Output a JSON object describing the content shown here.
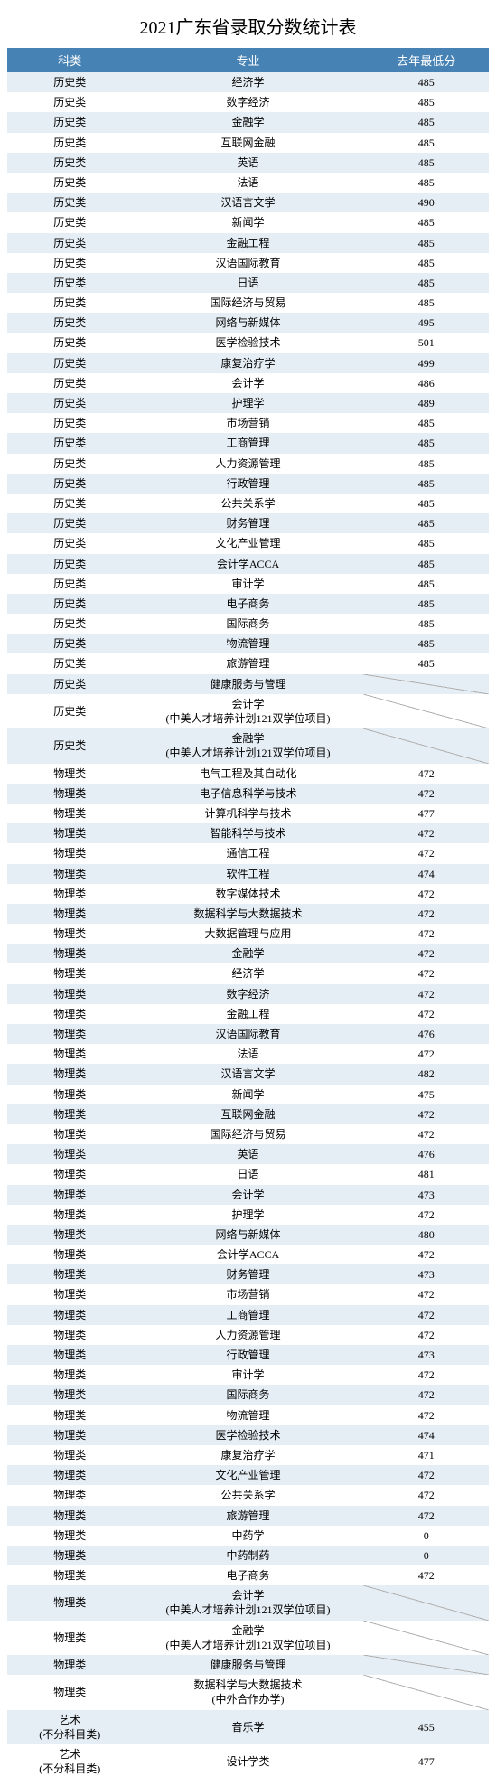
{
  "title": "2021广东省录取分数统计表",
  "columns": [
    "科类",
    "专业",
    "去年最低分"
  ],
  "header_bg": "#4682b4",
  "header_fg": "#ffffff",
  "row_bg_odd": "#e6eef5",
  "row_bg_even": "#ffffff",
  "title_fontsize": 20,
  "header_fontsize": 13,
  "cell_fontsize": 12,
  "rows": [
    {
      "cat": "历史类",
      "major": "经济学",
      "score": "485"
    },
    {
      "cat": "历史类",
      "major": "数字经济",
      "score": "485"
    },
    {
      "cat": "历史类",
      "major": "金融学",
      "score": "485"
    },
    {
      "cat": "历史类",
      "major": "互联网金融",
      "score": "485"
    },
    {
      "cat": "历史类",
      "major": "英语",
      "score": "485"
    },
    {
      "cat": "历史类",
      "major": "法语",
      "score": "485"
    },
    {
      "cat": "历史类",
      "major": "汉语言文学",
      "score": "490"
    },
    {
      "cat": "历史类",
      "major": "新闻学",
      "score": "485"
    },
    {
      "cat": "历史类",
      "major": "金融工程",
      "score": "485"
    },
    {
      "cat": "历史类",
      "major": "汉语国际教育",
      "score": "485"
    },
    {
      "cat": "历史类",
      "major": "日语",
      "score": "485"
    },
    {
      "cat": "历史类",
      "major": "国际经济与贸易",
      "score": "485"
    },
    {
      "cat": "历史类",
      "major": "网络与新媒体",
      "score": "495"
    },
    {
      "cat": "历史类",
      "major": "医学检验技术",
      "score": "501"
    },
    {
      "cat": "历史类",
      "major": "康复治疗学",
      "score": "499"
    },
    {
      "cat": "历史类",
      "major": "会计学",
      "score": "486"
    },
    {
      "cat": "历史类",
      "major": "护理学",
      "score": "489"
    },
    {
      "cat": "历史类",
      "major": "市场营销",
      "score": "485"
    },
    {
      "cat": "历史类",
      "major": "工商管理",
      "score": "485"
    },
    {
      "cat": "历史类",
      "major": "人力资源管理",
      "score": "485"
    },
    {
      "cat": "历史类",
      "major": "行政管理",
      "score": "485"
    },
    {
      "cat": "历史类",
      "major": "公共关系学",
      "score": "485"
    },
    {
      "cat": "历史类",
      "major": "财务管理",
      "score": "485"
    },
    {
      "cat": "历史类",
      "major": "文化产业管理",
      "score": "485"
    },
    {
      "cat": "历史类",
      "major": "会计学ACCA",
      "score": "485"
    },
    {
      "cat": "历史类",
      "major": "审计学",
      "score": "485"
    },
    {
      "cat": "历史类",
      "major": "电子商务",
      "score": "485"
    },
    {
      "cat": "历史类",
      "major": "国际商务",
      "score": "485"
    },
    {
      "cat": "历史类",
      "major": "物流管理",
      "score": "485"
    },
    {
      "cat": "历史类",
      "major": "旅游管理",
      "score": "485"
    },
    {
      "cat": "历史类",
      "major": "健康服务与管理",
      "score": null
    },
    {
      "cat": "历史类",
      "major": "会计学\n(中美人才培养计划121双学位项目)",
      "score": null
    },
    {
      "cat": "历史类",
      "major": "金融学\n(中美人才培养计划121双学位项目)",
      "score": null
    },
    {
      "cat": "物理类",
      "major": "电气工程及其自动化",
      "score": "472"
    },
    {
      "cat": "物理类",
      "major": "电子信息科学与技术",
      "score": "472"
    },
    {
      "cat": "物理类",
      "major": "计算机科学与技术",
      "score": "477"
    },
    {
      "cat": "物理类",
      "major": "智能科学与技术",
      "score": "472"
    },
    {
      "cat": "物理类",
      "major": "通信工程",
      "score": "472"
    },
    {
      "cat": "物理类",
      "major": "软件工程",
      "score": "474"
    },
    {
      "cat": "物理类",
      "major": "数字媒体技术",
      "score": "472"
    },
    {
      "cat": "物理类",
      "major": "数据科学与大数据技术",
      "score": "472"
    },
    {
      "cat": "物理类",
      "major": "大数据管理与应用",
      "score": "472"
    },
    {
      "cat": "物理类",
      "major": "金融学",
      "score": "472"
    },
    {
      "cat": "物理类",
      "major": "经济学",
      "score": "472"
    },
    {
      "cat": "物理类",
      "major": "数字经济",
      "score": "472"
    },
    {
      "cat": "物理类",
      "major": "金融工程",
      "score": "472"
    },
    {
      "cat": "物理类",
      "major": "汉语国际教育",
      "score": "476"
    },
    {
      "cat": "物理类",
      "major": "法语",
      "score": "472"
    },
    {
      "cat": "物理类",
      "major": "汉语言文学",
      "score": "482"
    },
    {
      "cat": "物理类",
      "major": "新闻学",
      "score": "475"
    },
    {
      "cat": "物理类",
      "major": "互联网金融",
      "score": "472"
    },
    {
      "cat": "物理类",
      "major": "国际经济与贸易",
      "score": "472"
    },
    {
      "cat": "物理类",
      "major": "英语",
      "score": "476"
    },
    {
      "cat": "物理类",
      "major": "日语",
      "score": "481"
    },
    {
      "cat": "物理类",
      "major": "会计学",
      "score": "473"
    },
    {
      "cat": "物理类",
      "major": "护理学",
      "score": "472"
    },
    {
      "cat": "物理类",
      "major": "网络与新媒体",
      "score": "480"
    },
    {
      "cat": "物理类",
      "major": "会计学ACCA",
      "score": "472"
    },
    {
      "cat": "物理类",
      "major": "财务管理",
      "score": "473"
    },
    {
      "cat": "物理类",
      "major": "市场营销",
      "score": "472"
    },
    {
      "cat": "物理类",
      "major": "工商管理",
      "score": "472"
    },
    {
      "cat": "物理类",
      "major": "人力资源管理",
      "score": "472"
    },
    {
      "cat": "物理类",
      "major": "行政管理",
      "score": "473"
    },
    {
      "cat": "物理类",
      "major": "审计学",
      "score": "472"
    },
    {
      "cat": "物理类",
      "major": "国际商务",
      "score": "472"
    },
    {
      "cat": "物理类",
      "major": "物流管理",
      "score": "472"
    },
    {
      "cat": "物理类",
      "major": "医学检验技术",
      "score": "474"
    },
    {
      "cat": "物理类",
      "major": "康复治疗学",
      "score": "471"
    },
    {
      "cat": "物理类",
      "major": "文化产业管理",
      "score": "472"
    },
    {
      "cat": "物理类",
      "major": "公共关系学",
      "score": "472"
    },
    {
      "cat": "物理类",
      "major": "旅游管理",
      "score": "472"
    },
    {
      "cat": "物理类",
      "major": "中药学",
      "score": "0"
    },
    {
      "cat": "物理类",
      "major": "中药制药",
      "score": "0"
    },
    {
      "cat": "物理类",
      "major": "电子商务",
      "score": "472"
    },
    {
      "cat": "物理类",
      "major": "会计学\n(中美人才培养计划121双学位项目)",
      "score": null
    },
    {
      "cat": "物理类",
      "major": "金融学\n(中美人才培养计划121双学位项目)",
      "score": null
    },
    {
      "cat": "物理类",
      "major": "健康服务与管理",
      "score": null
    },
    {
      "cat": "物理类",
      "major": "数据科学与大数据技术\n(中外合作办学)",
      "score": null
    },
    {
      "cat": "艺术\n(不分科目类)",
      "major": "音乐学",
      "score": "455"
    },
    {
      "cat": "艺术\n(不分科目类)",
      "major": "设计学类",
      "score": "477"
    }
  ]
}
